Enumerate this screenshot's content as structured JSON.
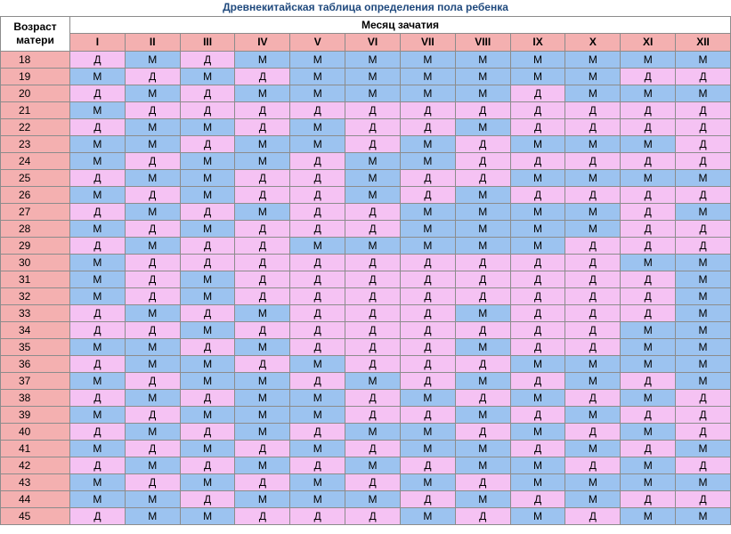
{
  "title": "Древнекитайская таблица определения пола ребенка",
  "header": {
    "age_label_line1": "Возраст",
    "age_label_line2": "матери",
    "month_label": "Месяц зачатия",
    "months": [
      "I",
      "II",
      "III",
      "IV",
      "V",
      "VI",
      "VII",
      "VIII",
      "IX",
      "X",
      "XI",
      "XII"
    ]
  },
  "colors": {
    "boy": "#9cc3f0",
    "girl": "#f5c2f3",
    "header": "#f4b0b0"
  },
  "rows": [
    {
      "age": "18",
      "cells": [
        "Д",
        "М",
        "Д",
        "М",
        "М",
        "М",
        "М",
        "М",
        "М",
        "М",
        "М",
        "М"
      ]
    },
    {
      "age": "19",
      "cells": [
        "М",
        "Д",
        "М",
        "Д",
        "М",
        "М",
        "М",
        "М",
        "М",
        "М",
        "Д",
        "Д"
      ]
    },
    {
      "age": "20",
      "cells": [
        "Д",
        "М",
        "Д",
        "М",
        "М",
        "М",
        "М",
        "М",
        "Д",
        "М",
        "М",
        "М"
      ]
    },
    {
      "age": "21",
      "cells": [
        "М",
        "Д",
        "Д",
        "Д",
        "Д",
        "Д",
        "Д",
        "Д",
        "Д",
        "Д",
        "Д",
        "Д"
      ]
    },
    {
      "age": "22",
      "cells": [
        "Д",
        "М",
        "М",
        "Д",
        "М",
        "Д",
        "Д",
        "М",
        "Д",
        "Д",
        "Д",
        "Д"
      ]
    },
    {
      "age": "23",
      "cells": [
        "М",
        "М",
        "Д",
        "М",
        "М",
        "Д",
        "М",
        "Д",
        "М",
        "М",
        "М",
        "Д"
      ]
    },
    {
      "age": "24",
      "cells": [
        "М",
        "Д",
        "М",
        "М",
        "Д",
        "М",
        "М",
        "Д",
        "Д",
        "Д",
        "Д",
        "Д"
      ]
    },
    {
      "age": "25",
      "cells": [
        "Д",
        "М",
        "М",
        "Д",
        "Д",
        "М",
        "Д",
        "Д",
        "М",
        "М",
        "М",
        "М"
      ]
    },
    {
      "age": "26",
      "cells": [
        "М",
        "Д",
        "М",
        "Д",
        "Д",
        "М",
        "Д",
        "М",
        "Д",
        "Д",
        "Д",
        "Д"
      ]
    },
    {
      "age": "27",
      "cells": [
        "Д",
        "М",
        "Д",
        "М",
        "Д",
        "Д",
        "М",
        "М",
        "М",
        "М",
        "Д",
        "М"
      ]
    },
    {
      "age": "28",
      "cells": [
        "М",
        "Д",
        "М",
        "Д",
        "Д",
        "Д",
        "М",
        "М",
        "М",
        "М",
        "Д",
        "Д"
      ]
    },
    {
      "age": "29",
      "cells": [
        "Д",
        "М",
        "Д",
        "Д",
        "М",
        "М",
        "М",
        "М",
        "М",
        "Д",
        "Д",
        "Д"
      ]
    },
    {
      "age": "30",
      "cells": [
        "М",
        "Д",
        "Д",
        "Д",
        "Д",
        "Д",
        "Д",
        "Д",
        "Д",
        "Д",
        "М",
        "М"
      ]
    },
    {
      "age": "31",
      "cells": [
        "М",
        "Д",
        "М",
        "Д",
        "Д",
        "Д",
        "Д",
        "Д",
        "Д",
        "Д",
        "Д",
        "М"
      ]
    },
    {
      "age": "32",
      "cells": [
        "М",
        "Д",
        "М",
        "Д",
        "Д",
        "Д",
        "Д",
        "Д",
        "Д",
        "Д",
        "Д",
        "М"
      ]
    },
    {
      "age": "33",
      "cells": [
        "Д",
        "М",
        "Д",
        "М",
        "Д",
        "Д",
        "Д",
        "М",
        "Д",
        "Д",
        "Д",
        "М"
      ]
    },
    {
      "age": "34",
      "cells": [
        "Д",
        "Д",
        "М",
        "Д",
        "Д",
        "Д",
        "Д",
        "Д",
        "Д",
        "Д",
        "М",
        "М"
      ]
    },
    {
      "age": "35",
      "cells": [
        "М",
        "М",
        "Д",
        "М",
        "Д",
        "Д",
        "Д",
        "М",
        "Д",
        "Д",
        "М",
        "М"
      ]
    },
    {
      "age": "36",
      "cells": [
        "Д",
        "М",
        "М",
        "Д",
        "М",
        "Д",
        "Д",
        "Д",
        "М",
        "М",
        "М",
        "М"
      ]
    },
    {
      "age": "37",
      "cells": [
        "М",
        "Д",
        "М",
        "М",
        "Д",
        "М",
        "Д",
        "М",
        "Д",
        "М",
        "Д",
        "М"
      ]
    },
    {
      "age": "38",
      "cells": [
        "Д",
        "М",
        "Д",
        "М",
        "М",
        "Д",
        "М",
        "Д",
        "М",
        "Д",
        "М",
        "Д"
      ]
    },
    {
      "age": "39",
      "cells": [
        "М",
        "Д",
        "М",
        "М",
        "М",
        "Д",
        "Д",
        "М",
        "Д",
        "М",
        "Д",
        "Д"
      ]
    },
    {
      "age": "40",
      "cells": [
        "Д",
        "М",
        "Д",
        "М",
        "Д",
        "М",
        "М",
        "Д",
        "М",
        "Д",
        "М",
        "Д"
      ]
    },
    {
      "age": "41",
      "cells": [
        "М",
        "Д",
        "М",
        "Д",
        "М",
        "Д",
        "М",
        "М",
        "Д",
        "М",
        "Д",
        "М"
      ]
    },
    {
      "age": "42",
      "cells": [
        "Д",
        "М",
        "Д",
        "М",
        "Д",
        "М",
        "Д",
        "М",
        "М",
        "Д",
        "М",
        "Д"
      ]
    },
    {
      "age": "43",
      "cells": [
        "М",
        "Д",
        "М",
        "Д",
        "М",
        "Д",
        "М",
        "Д",
        "М",
        "М",
        "М",
        "М"
      ]
    },
    {
      "age": "44",
      "cells": [
        "М",
        "М",
        "Д",
        "М",
        "М",
        "М",
        "Д",
        "М",
        "Д",
        "М",
        "Д",
        "Д"
      ]
    },
    {
      "age": "45",
      "cells": [
        "Д",
        "М",
        "М",
        "Д",
        "Д",
        "Д",
        "М",
        "Д",
        "М",
        "Д",
        "М",
        "М"
      ]
    }
  ]
}
